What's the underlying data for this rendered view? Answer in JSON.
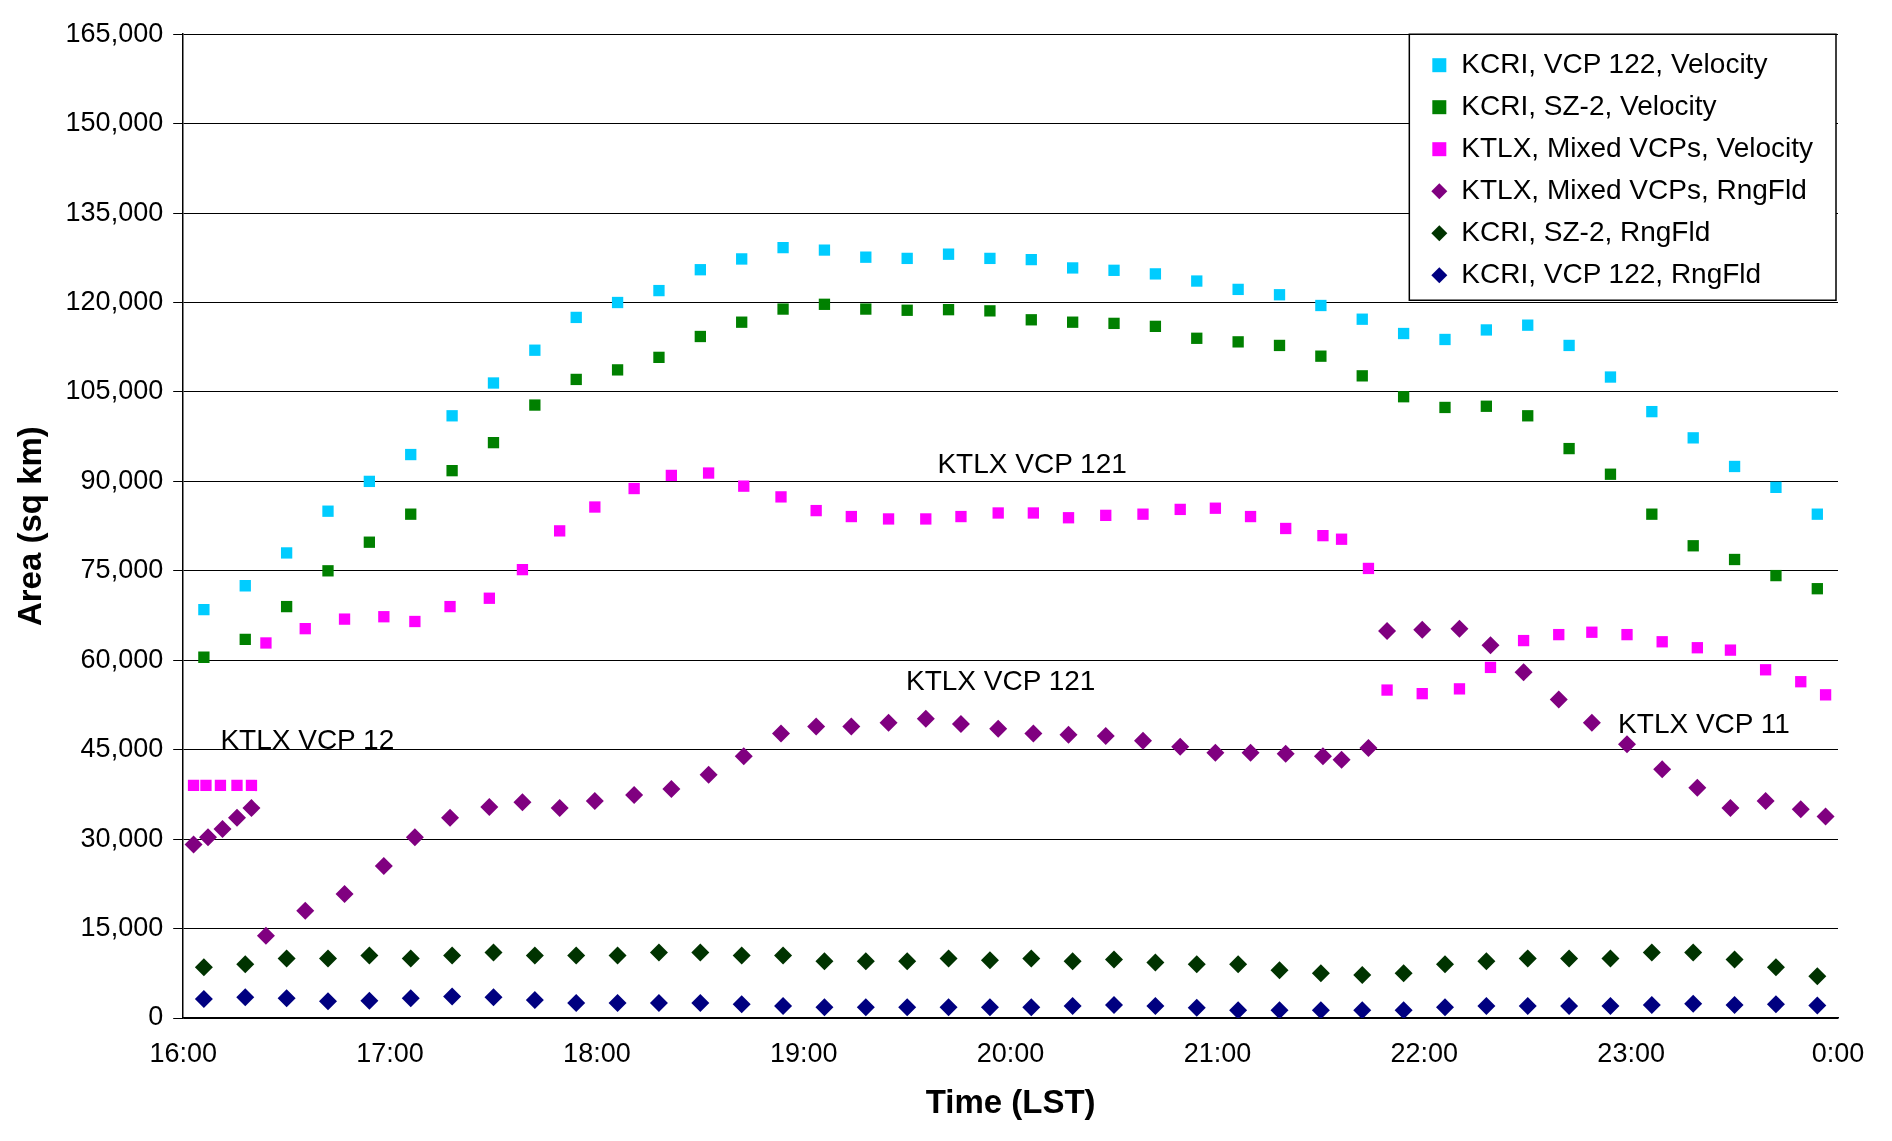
{
  "chart_data": {
    "type": "scatter",
    "xlabel": "Time (LST)",
    "ylabel": "Area (sq km)",
    "xlim": [
      16,
      24
    ],
    "xticks": [
      {
        "value": 16,
        "label": "16:00"
      },
      {
        "value": 17,
        "label": "17:00"
      },
      {
        "value": 18,
        "label": "18:00"
      },
      {
        "value": 19,
        "label": "19:00"
      },
      {
        "value": 20,
        "label": "20:00"
      },
      {
        "value": 21,
        "label": "21:00"
      },
      {
        "value": 22,
        "label": "22:00"
      },
      {
        "value": 23,
        "label": "23:00"
      },
      {
        "value": 24,
        "label": "0:00"
      }
    ],
    "ylim": [
      0,
      165000
    ],
    "yticks": [
      0,
      {
        "value": 15000,
        "label": "15,000"
      },
      {
        "value": 30000,
        "label": "30,000"
      },
      {
        "value": 45000,
        "label": "45,000"
      },
      {
        "value": 60000,
        "label": "60,000"
      },
      {
        "value": 75000,
        "label": "75,000"
      },
      {
        "value": 90000,
        "label": "90,000"
      },
      {
        "value": 105000,
        "label": "105,000"
      },
      {
        "value": 120000,
        "label": "120,000"
      },
      {
        "value": 135000,
        "label": "135,000"
      },
      {
        "value": 150000,
        "label": "150,000"
      },
      {
        "value": 165000,
        "label": "165,000"
      }
    ],
    "grid": "y",
    "legend": "top right",
    "annotations": [
      "KTLX VCP 12",
      "KTLX VCP 121",
      "KTLX VCP 121",
      "KTLX VCP 11"
    ],
    "series": [
      {
        "name": "KCRI, VCP 122, Velocity",
        "color": "#00ccff",
        "marker": "square",
        "x": [
          16.1,
          16.3,
          16.5,
          16.7,
          16.9,
          17.1,
          17.3,
          17.5,
          17.7,
          17.9,
          18.1,
          18.3,
          18.5,
          18.7,
          18.9,
          19.1,
          19.3,
          19.5,
          19.7,
          19.9,
          20.1,
          20.3,
          20.5,
          20.7,
          20.9,
          21.1,
          21.3,
          21.5,
          21.7,
          21.9,
          22.1,
          22.3,
          22.5,
          22.7,
          22.9,
          23.1,
          23.3,
          23.5,
          23.7,
          23.9
        ],
        "values": [
          68500,
          72500,
          78000,
          85000,
          90000,
          94500,
          101000,
          106500,
          112000,
          117500,
          120000,
          122000,
          125500,
          127300,
          129200,
          128800,
          127600,
          127400,
          128100,
          127400,
          127200,
          125800,
          125400,
          124800,
          123600,
          122200,
          121300,
          119500,
          117200,
          114800,
          113800,
          115400,
          116200,
          112800,
          107500,
          101700,
          97300,
          92500,
          89000,
          84500
        ]
      },
      {
        "name": "KCRI, SZ-2, Velocity",
        "color": "#008000",
        "marker": "square",
        "x": [
          16.1,
          16.3,
          16.5,
          16.7,
          16.9,
          17.1,
          17.3,
          17.5,
          17.7,
          17.9,
          18.1,
          18.3,
          18.5,
          18.7,
          18.9,
          19.1,
          19.3,
          19.5,
          19.7,
          19.9,
          20.1,
          20.3,
          20.5,
          20.7,
          20.9,
          21.1,
          21.3,
          21.5,
          21.7,
          21.9,
          22.1,
          22.3,
          22.5,
          22.7,
          22.9,
          23.1,
          23.3,
          23.5,
          23.7,
          23.9
        ],
        "values": [
          60500,
          63500,
          69000,
          75000,
          79800,
          84500,
          91800,
          96500,
          102800,
          107100,
          108700,
          110800,
          114300,
          116700,
          118900,
          119700,
          118900,
          118700,
          118800,
          118600,
          117100,
          116700,
          116500,
          116000,
          114000,
          113400,
          112800,
          111000,
          107700,
          104200,
          102400,
          102600,
          101000,
          95500,
          91200,
          84500,
          79200,
          76900,
          74200,
          72000
        ]
      },
      {
        "name": "KTLX, Mixed VCPs, Velocity",
        "color": "#ff00ff",
        "marker": "square",
        "x": [
          16.05,
          16.11,
          16.18,
          16.26,
          16.33,
          16.4,
          16.59,
          16.78,
          16.97,
          17.12,
          17.29,
          17.48,
          17.64,
          17.82,
          17.99,
          18.18,
          18.36,
          18.54,
          18.71,
          18.89,
          19.06,
          19.23,
          19.41,
          19.59,
          19.76,
          19.94,
          20.11,
          20.28,
          20.46,
          20.64,
          20.82,
          20.99,
          21.16,
          21.33,
          21.51,
          21.6,
          21.73,
          21.82,
          21.99,
          22.17,
          22.32,
          22.48,
          22.65,
          22.81,
          22.98,
          23.15,
          23.32,
          23.48,
          23.65,
          23.82,
          23.94
        ],
        "values": [
          39000,
          39000,
          39000,
          39000,
          39000,
          62900,
          65300,
          66900,
          67300,
          66500,
          69000,
          70400,
          75200,
          81700,
          85700,
          88800,
          91000,
          91400,
          89200,
          87400,
          85100,
          84100,
          83700,
          83700,
          84100,
          84700,
          84700,
          83900,
          84300,
          84500,
          85300,
          85500,
          84100,
          82100,
          80900,
          80300,
          75400,
          55000,
          54400,
          55200,
          58800,
          63300,
          64300,
          64700,
          64300,
          63100,
          62100,
          61700,
          58400,
          56400,
          54200
        ]
      },
      {
        "name": "KTLX, Mixed VCPs, RngFld",
        "color": "#800080",
        "marker": "diamond",
        "x": [
          16.05,
          16.12,
          16.19,
          16.26,
          16.33,
          16.4,
          16.59,
          16.78,
          16.97,
          17.12,
          17.29,
          17.48,
          17.64,
          17.82,
          17.99,
          18.18,
          18.36,
          18.54,
          18.71,
          18.89,
          19.06,
          19.23,
          19.41,
          19.59,
          19.76,
          19.94,
          20.11,
          20.28,
          20.46,
          20.64,
          20.82,
          20.99,
          21.16,
          21.33,
          21.51,
          21.6,
          21.73,
          21.82,
          21.99,
          22.17,
          22.32,
          22.48,
          22.65,
          22.81,
          22.98,
          23.15,
          23.32,
          23.48,
          23.65,
          23.82,
          23.94
        ],
        "values": [
          29100,
          30300,
          31700,
          33600,
          35200,
          13800,
          18000,
          20800,
          25500,
          30300,
          33600,
          35400,
          36200,
          35200,
          36400,
          37400,
          38400,
          40800,
          43900,
          47700,
          48900,
          48900,
          49500,
          50200,
          49300,
          48500,
          47700,
          47500,
          47300,
          46500,
          45500,
          44500,
          44500,
          44300,
          43900,
          43300,
          45300,
          64900,
          65100,
          65300,
          62500,
          58000,
          53400,
          49500,
          45900,
          41700,
          38600,
          35200,
          36400,
          35000,
          33800
        ]
      },
      {
        "name": "KCRI, SZ-2, RngFld",
        "color": "#003300",
        "marker": "diamond",
        "x": [
          16.1,
          16.3,
          16.5,
          16.7,
          16.9,
          17.1,
          17.3,
          17.5,
          17.7,
          17.9,
          18.1,
          18.3,
          18.5,
          18.7,
          18.9,
          19.1,
          19.3,
          19.5,
          19.7,
          19.9,
          20.1,
          20.3,
          20.5,
          20.7,
          20.9,
          21.1,
          21.3,
          21.5,
          21.7,
          21.9,
          22.1,
          22.3,
          22.5,
          22.7,
          22.9,
          23.1,
          23.3,
          23.5,
          23.7,
          23.9
        ],
        "values": [
          8500,
          9000,
          10000,
          10000,
          10500,
          10000,
          10500,
          11000,
          10500,
          10500,
          10500,
          11000,
          11000,
          10500,
          10500,
          9500,
          9500,
          9500,
          10000,
          9700,
          10000,
          9500,
          9800,
          9300,
          9000,
          9000,
          8000,
          7500,
          7200,
          7500,
          9000,
          9500,
          10000,
          10000,
          10000,
          11000,
          11000,
          9800,
          8500,
          7000
        ]
      },
      {
        "name": "KCRI, VCP 122, RngFld",
        "color": "#000080",
        "marker": "diamond",
        "x": [
          16.1,
          16.3,
          16.5,
          16.7,
          16.9,
          17.1,
          17.3,
          17.5,
          17.7,
          17.9,
          18.1,
          18.3,
          18.5,
          18.7,
          18.9,
          19.1,
          19.3,
          19.5,
          19.7,
          19.9,
          20.1,
          20.3,
          20.5,
          20.7,
          20.9,
          21.1,
          21.3,
          21.5,
          21.7,
          21.9,
          22.1,
          22.3,
          22.5,
          22.7,
          22.9,
          23.1,
          23.3,
          23.5,
          23.7,
          23.9
        ],
        "values": [
          3200,
          3500,
          3300,
          2800,
          2900,
          3300,
          3600,
          3500,
          3000,
          2500,
          2500,
          2500,
          2500,
          2300,
          2000,
          1800,
          1800,
          1800,
          1800,
          1800,
          1800,
          2000,
          2200,
          2000,
          1700,
          1300,
          1300,
          1300,
          1300,
          1300,
          1800,
          2000,
          2000,
          2000,
          2000,
          2200,
          2400,
          2200,
          2300,
          2100
        ]
      }
    ]
  }
}
